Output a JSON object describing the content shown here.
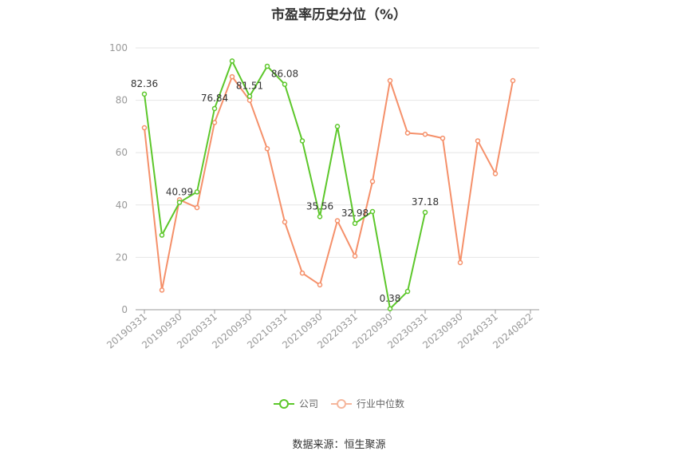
{
  "chart_data": {
    "type": "line",
    "title": "市盈率历史分位（%）",
    "source": "数据来源：恒生聚源",
    "ylim": [
      0,
      100
    ],
    "yticks": [
      0,
      20,
      40,
      60,
      80,
      100
    ],
    "grid": true,
    "legend_position": "bottom",
    "x": [
      "20190331",
      "20190630",
      "20190930",
      "20191231",
      "20200331",
      "20200630",
      "20200930",
      "20201231",
      "20210331",
      "20210630",
      "20210930",
      "20211231",
      "20220331",
      "20220630",
      "20220930",
      "20221231",
      "20230331",
      "20230630",
      "20230930",
      "20231231",
      "20240331",
      "20240630",
      "20240822"
    ],
    "x_tick_labels": [
      "20190331",
      "20190930",
      "20200331",
      "20200930",
      "20210331",
      "20210930",
      "20220331",
      "20220930",
      "20230331",
      "20230930",
      "20240331",
      "20240822"
    ],
    "series": [
      {
        "name": "公司",
        "color": "#5cc72a",
        "values": [
          82.36,
          28.5,
          40.99,
          45.0,
          76.84,
          95.0,
          81.51,
          93.0,
          86.08,
          64.5,
          35.56,
          70.0,
          32.98,
          37.5,
          0.38,
          7.0,
          37.18,
          null,
          null,
          null,
          null,
          null,
          null
        ],
        "labels": [
          "82.36",
          null,
          "40.99",
          null,
          "76.84",
          null,
          "81.51",
          null,
          "86.08",
          null,
          "35.56",
          null,
          "32.98",
          null,
          "0.38",
          null,
          "37.18",
          null,
          null,
          null,
          null,
          null,
          null
        ]
      },
      {
        "name": "行业中位数",
        "color": "#f5906a",
        "values": [
          69.5,
          7.5,
          42.0,
          39.0,
          71.5,
          89.0,
          80.0,
          61.5,
          33.5,
          14.0,
          9.5,
          34.0,
          20.5,
          49.0,
          87.5,
          67.5,
          67.0,
          65.5,
          18.0,
          64.5,
          52.0,
          87.5,
          null
        ]
      }
    ]
  }
}
